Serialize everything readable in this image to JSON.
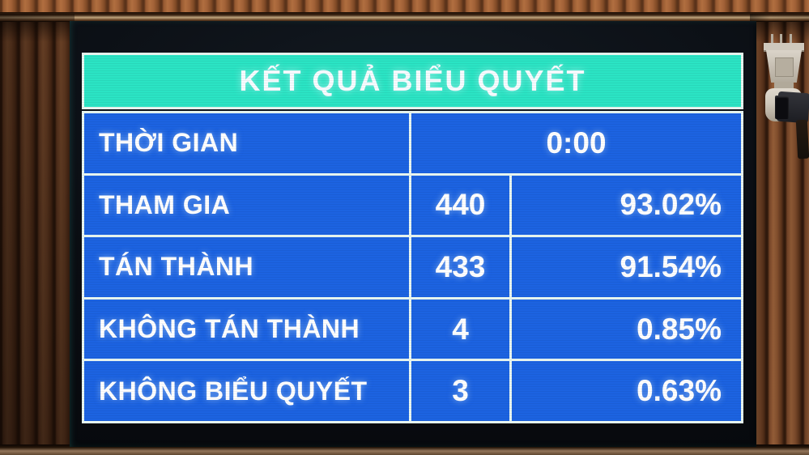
{
  "screen": {
    "title": "KẾT QUẢ BIỂU QUYẾT",
    "rows": [
      {
        "label": "THỜI GIAN",
        "value": "0:00"
      },
      {
        "label": "THAM GIA",
        "count": "440",
        "percent": "93.02%"
      },
      {
        "label": "TÁN THÀNH",
        "count": "433",
        "percent": "91.54%"
      },
      {
        "label": "KHÔNG TÁN THÀNH",
        "count": "4",
        "percent": "0.85%"
      },
      {
        "label": "KHÔNG BIỂU QUYẾT",
        "count": "3",
        "percent": "0.63%"
      }
    ],
    "colors": {
      "header_bg": "#2be4c4",
      "cell_bg": "#1c63e1",
      "gridline": "#e9f7f1",
      "text": "#ffffff"
    }
  },
  "scene": {
    "wall": "wooden-slat-wall",
    "camera": "ptz-security-camera"
  }
}
